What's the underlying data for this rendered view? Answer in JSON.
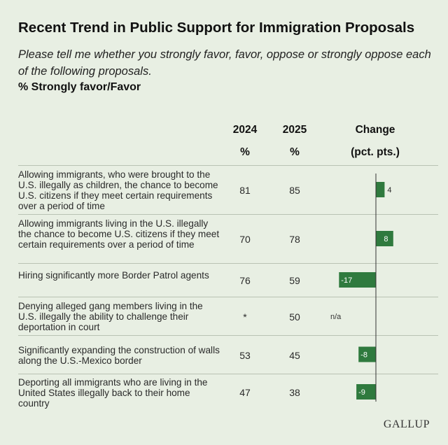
{
  "header": {
    "title": "Recent Trend in Public Support for Immigration Proposals",
    "subtitle": "Please tell me whether you strongly favor, favor, oppose or strongly oppose each of the following proposals.",
    "measure": "% Strongly favor/Favor"
  },
  "columns": {
    "y2024": "2024",
    "y2025": "2025",
    "pct": "%",
    "change": "Change",
    "change_unit": "(pct. pts.)"
  },
  "chart_data": {
    "type": "table",
    "title": "Recent Trend in Public Support for Immigration Proposals",
    "columns": [
      "2024 %",
      "2025 %",
      "Change (pct. pts.)"
    ],
    "bar_color": "#2f7a3e",
    "rows": [
      {
        "label": "Allowing immigrants, who were brought to the U.S. illegally as children, the chance to become U.S. citizens if they meet certain requirements over a period of time",
        "y2024": "81",
        "y2025": "85",
        "change": 4,
        "change_label": "4"
      },
      {
        "label": "Allowing immigrants living in the U.S. illegally the chance to become U.S. citizens if they meet certain requirements over a period of time",
        "y2024": "70",
        "y2025": "78",
        "change": 8,
        "change_label": "8"
      },
      {
        "label": "Hiring significantly more Border Patrol agents",
        "y2024": "76",
        "y2025": "59",
        "change": -17,
        "change_label": "-17"
      },
      {
        "label": "Denying alleged gang members living in the U.S. illegally the ability to challenge their deportation in court",
        "y2024": "*",
        "y2025": "50",
        "change": null,
        "change_label": "n/a"
      },
      {
        "label": "Significantly expanding the construction of walls along the U.S.-Mexico border",
        "y2024": "53",
        "y2025": "45",
        "change": -8,
        "change_label": "-8"
      },
      {
        "label": "Deporting all immigrants who are living in the United States illegally back to their home country",
        "y2024": "47",
        "y2025": "38",
        "change": -9,
        "change_label": "-9"
      }
    ]
  },
  "footer": {
    "logo": "GALLUP"
  }
}
